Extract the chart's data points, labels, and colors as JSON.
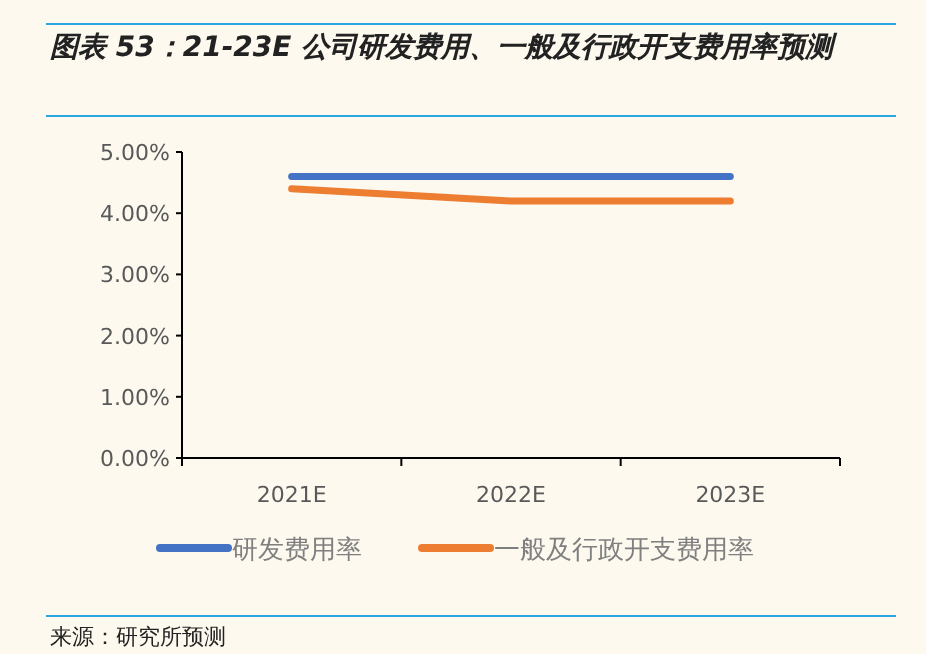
{
  "chart_data": {
    "type": "line",
    "title": "图表 53：21-23E 公司研发费用、一般及行政开支费用率预测",
    "categories": [
      "2021E",
      "2022E",
      "2023E"
    ],
    "series": [
      {
        "name": "研发费用率",
        "color": "#4472c4",
        "values": [
          4.6,
          4.6,
          4.6
        ]
      },
      {
        "name": "一般及行政开支费用率",
        "color": "#ed7d31",
        "values": [
          4.4,
          4.2,
          4.2
        ]
      }
    ],
    "ylim": [
      0,
      5
    ],
    "yticks": [
      {
        "value": 0,
        "label": "0.00%"
      },
      {
        "value": 1,
        "label": "1.00%"
      },
      {
        "value": 2,
        "label": "2.00%"
      },
      {
        "value": 3,
        "label": "3.00%"
      },
      {
        "value": 4,
        "label": "4.00%"
      },
      {
        "value": 5,
        "label": "5.00%"
      }
    ],
    "grid": false,
    "legend": "bottom",
    "marker": "none",
    "line_style": "solid",
    "annotations": [
      "来源：研究所预测"
    ]
  }
}
